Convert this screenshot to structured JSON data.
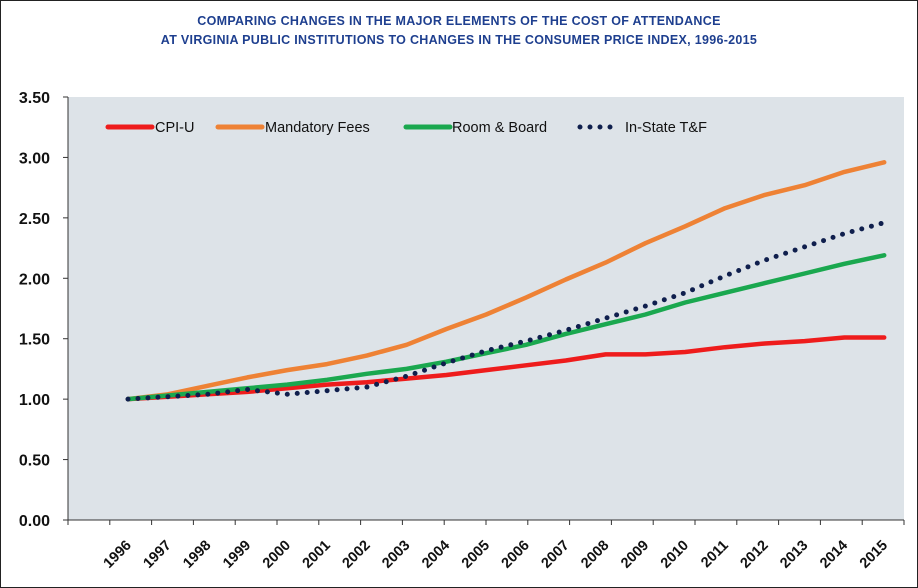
{
  "chart_data": {
    "type": "line",
    "title_lines": [
      "COMPARING CHANGES IN THE MAJOR ELEMENTS OF THE COST OF ATTENDANCE",
      "AT VIRGINIA PUBLIC INSTITUTIONS TO CHANGES IN THE CONSUMER PRICE INDEX, 1996-2015"
    ],
    "xlabel": "",
    "ylabel": "",
    "x": [
      "1996",
      "1997",
      "1998",
      "1999",
      "2000",
      "2001",
      "2002",
      "2003",
      "2004",
      "2005",
      "2006",
      "2007",
      "2008",
      "2009",
      "2010",
      "2011",
      "2012",
      "2013",
      "2014",
      "2015"
    ],
    "ylim": [
      0,
      3.5
    ],
    "yticks": [
      "0.00",
      "0.50",
      "1.00",
      "1.50",
      "2.00",
      "2.50",
      "3.00",
      "3.50"
    ],
    "grid": false,
    "legend_position": "top-left",
    "background_color": "#dde3e8",
    "series": [
      {
        "name": "CPI-U",
        "color": "#ee1c1c",
        "style": "solid",
        "values": [
          1.0,
          1.02,
          1.04,
          1.06,
          1.09,
          1.12,
          1.14,
          1.17,
          1.2,
          1.24,
          1.28,
          1.32,
          1.37,
          1.37,
          1.39,
          1.43,
          1.46,
          1.48,
          1.51,
          1.51
        ]
      },
      {
        "name": "Mandatory Fees",
        "color": "#ee8235",
        "style": "solid",
        "values": [
          1.0,
          1.04,
          1.11,
          1.18,
          1.24,
          1.29,
          1.36,
          1.45,
          1.58,
          1.7,
          1.84,
          1.99,
          2.13,
          2.29,
          2.43,
          2.58,
          2.69,
          2.77,
          2.88,
          2.96
        ]
      },
      {
        "name": "Room & Board",
        "color": "#1aa84f",
        "style": "solid",
        "values": [
          1.0,
          1.03,
          1.06,
          1.09,
          1.12,
          1.16,
          1.21,
          1.25,
          1.31,
          1.38,
          1.45,
          1.54,
          1.62,
          1.7,
          1.8,
          1.88,
          1.96,
          2.04,
          2.12,
          2.19
        ]
      },
      {
        "name": "In-State T&F",
        "color": "#0f1f4d",
        "style": "dotted",
        "values": [
          1.0,
          1.02,
          1.04,
          1.08,
          1.04,
          1.07,
          1.1,
          1.19,
          1.3,
          1.4,
          1.48,
          1.57,
          1.67,
          1.77,
          1.88,
          2.02,
          2.15,
          2.26,
          2.37,
          2.46
        ]
      }
    ]
  }
}
